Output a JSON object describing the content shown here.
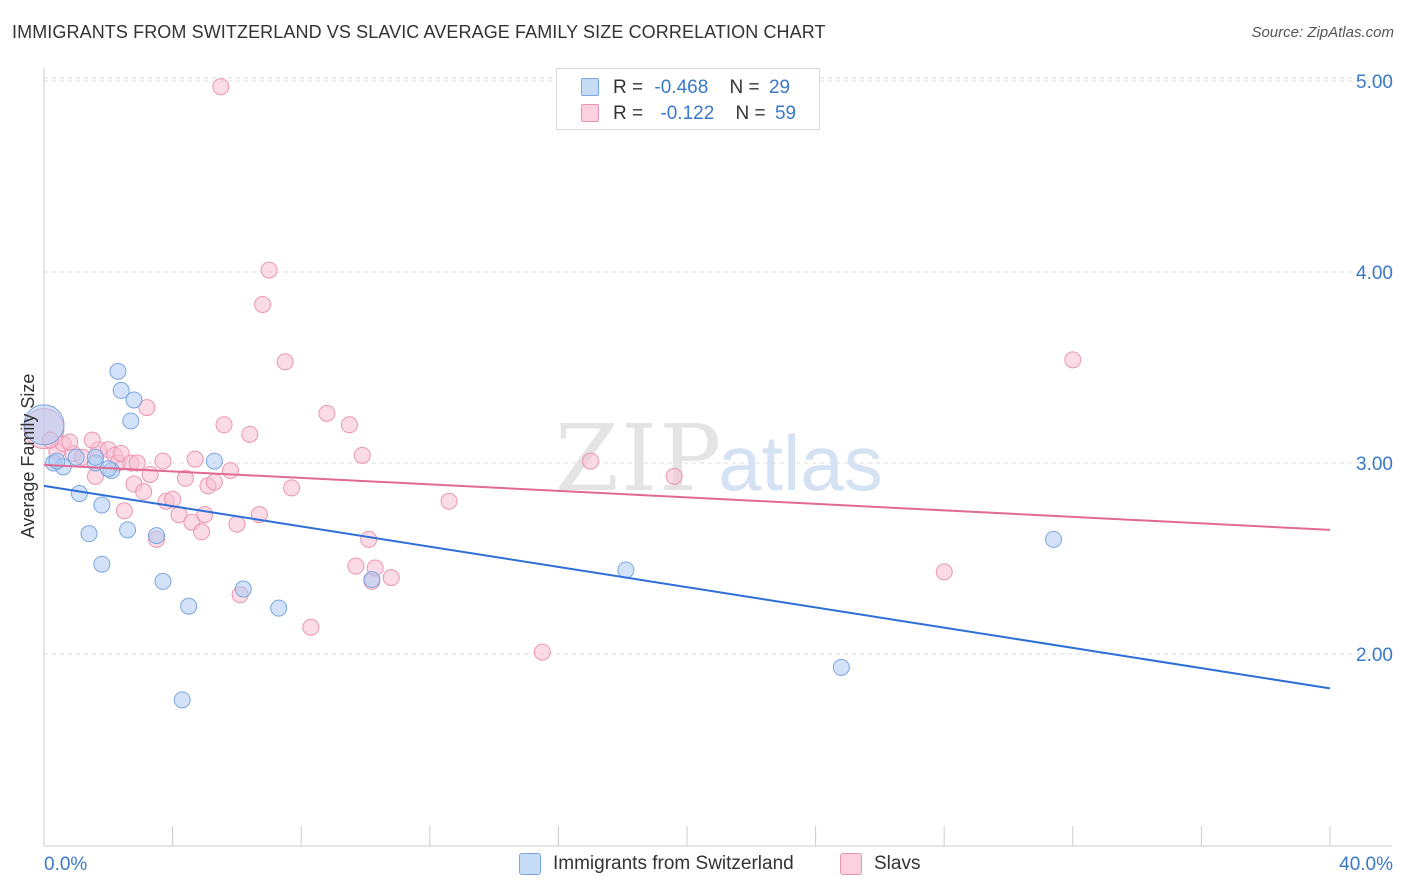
{
  "title": "IMMIGRANTS FROM SWITZERLAND VS SLAVIC AVERAGE FAMILY SIZE CORRELATION CHART",
  "source": "Source: ZipAtlas.com",
  "watermark": {
    "zip": "ZIP",
    "atlas": "atlas"
  },
  "legend": {
    "rows": [
      {
        "r_label": "R =",
        "r_value": "-0.468",
        "n_label": "N =",
        "n_value": "29"
      },
      {
        "r_label": "R =",
        "r_value": "-0.122",
        "n_label": "N =",
        "n_value": "59"
      }
    ]
  },
  "bottom_legend": [
    {
      "label": "Immigrants from Switzerland"
    },
    {
      "label": "Slavs"
    }
  ],
  "colors": {
    "blue_fill": "#aecbf2",
    "blue_stroke": "#7aa7e0",
    "blue_line": "#2d6fd6",
    "pink_fill": "#f7bfd2",
    "pink_stroke": "#eb94b4",
    "pink_line": "#e06a93",
    "tick_label": "#3a78c9",
    "grid": "#dddddd"
  },
  "chart_data": {
    "type": "scatter",
    "title": "IMMIGRANTS FROM SWITZERLAND VS SLAVIC AVERAGE FAMILY SIZE CORRELATION CHART",
    "xlabel": "",
    "ylabel": "Average Family Size",
    "xlim": [
      0,
      40
    ],
    "ylim": [
      1.0,
      5.1
    ],
    "x_tick_labels": [
      "0.0%",
      "40.0%"
    ],
    "y_ticks": [
      2.0,
      3.0,
      4.0,
      5.0
    ],
    "y_tick_labels": [
      "2.00",
      "3.00",
      "4.00",
      "5.00"
    ],
    "grid": true,
    "series": [
      {
        "name": "Immigrants from Switzerland",
        "r": -0.468,
        "n": 29,
        "trend": {
          "x": [
            0,
            40
          ],
          "y": [
            2.88,
            1.82
          ]
        },
        "points": [
          {
            "x": 0.0,
            "y": 3.2,
            "big": true
          },
          {
            "x": 0.3,
            "y": 3.0
          },
          {
            "x": 0.6,
            "y": 2.98
          },
          {
            "x": 1.0,
            "y": 3.03
          },
          {
            "x": 1.1,
            "y": 2.84
          },
          {
            "x": 1.4,
            "y": 2.63
          },
          {
            "x": 1.6,
            "y": 3.0
          },
          {
            "x": 1.8,
            "y": 2.78
          },
          {
            "x": 1.8,
            "y": 2.47
          },
          {
            "x": 2.1,
            "y": 2.96
          },
          {
            "x": 2.3,
            "y": 3.48
          },
          {
            "x": 2.4,
            "y": 3.38
          },
          {
            "x": 2.6,
            "y": 2.65
          },
          {
            "x": 2.7,
            "y": 3.22
          },
          {
            "x": 2.8,
            "y": 3.33
          },
          {
            "x": 3.5,
            "y": 2.62
          },
          {
            "x": 3.7,
            "y": 2.38
          },
          {
            "x": 4.5,
            "y": 2.25
          },
          {
            "x": 4.3,
            "y": 1.76
          },
          {
            "x": 5.3,
            "y": 3.01
          },
          {
            "x": 6.2,
            "y": 2.34
          },
          {
            "x": 7.3,
            "y": 2.24
          },
          {
            "x": 10.2,
            "y": 2.39
          },
          {
            "x": 18.1,
            "y": 2.44
          },
          {
            "x": 24.8,
            "y": 1.93
          },
          {
            "x": 31.4,
            "y": 2.6
          },
          {
            "x": 1.6,
            "y": 3.03
          },
          {
            "x": 2.0,
            "y": 2.97
          },
          {
            "x": 0.4,
            "y": 3.01
          }
        ]
      },
      {
        "name": "Slavs",
        "r": -0.122,
        "n": 59,
        "trend": {
          "x": [
            0,
            40
          ],
          "y": [
            2.99,
            2.65
          ]
        },
        "points": [
          {
            "x": 0.0,
            "y": 3.18,
            "big": true
          },
          {
            "x": 0.4,
            "y": 3.06
          },
          {
            "x": 0.6,
            "y": 3.1
          },
          {
            "x": 0.9,
            "y": 3.05
          },
          {
            "x": 0.8,
            "y": 3.11
          },
          {
            "x": 1.2,
            "y": 3.03
          },
          {
            "x": 1.7,
            "y": 3.07
          },
          {
            "x": 1.6,
            "y": 2.93
          },
          {
            "x": 2.0,
            "y": 3.07
          },
          {
            "x": 2.2,
            "y": 3.04
          },
          {
            "x": 2.3,
            "y": 3.0
          },
          {
            "x": 2.4,
            "y": 3.05
          },
          {
            "x": 2.5,
            "y": 2.75
          },
          {
            "x": 2.7,
            "y": 3.0
          },
          {
            "x": 2.8,
            "y": 2.89
          },
          {
            "x": 3.1,
            "y": 2.85
          },
          {
            "x": 3.2,
            "y": 3.29
          },
          {
            "x": 3.3,
            "y": 2.94
          },
          {
            "x": 3.5,
            "y": 2.6
          },
          {
            "x": 3.7,
            "y": 3.01
          },
          {
            "x": 3.8,
            "y": 2.8
          },
          {
            "x": 4.0,
            "y": 2.81
          },
          {
            "x": 4.2,
            "y": 2.73
          },
          {
            "x": 4.4,
            "y": 2.92
          },
          {
            "x": 4.6,
            "y": 2.69
          },
          {
            "x": 4.7,
            "y": 3.02
          },
          {
            "x": 4.9,
            "y": 2.64
          },
          {
            "x": 5.0,
            "y": 2.73
          },
          {
            "x": 5.1,
            "y": 2.88
          },
          {
            "x": 5.3,
            "y": 2.9
          },
          {
            "x": 5.5,
            "y": 4.97
          },
          {
            "x": 5.6,
            "y": 3.2
          },
          {
            "x": 5.8,
            "y": 2.96
          },
          {
            "x": 6.0,
            "y": 2.68
          },
          {
            "x": 6.1,
            "y": 2.31
          },
          {
            "x": 6.4,
            "y": 3.15
          },
          {
            "x": 6.7,
            "y": 2.73
          },
          {
            "x": 6.8,
            "y": 3.83
          },
          {
            "x": 7.0,
            "y": 4.01
          },
          {
            "x": 7.5,
            "y": 3.53
          },
          {
            "x": 7.7,
            "y": 2.87
          },
          {
            "x": 8.3,
            "y": 2.14
          },
          {
            "x": 8.8,
            "y": 3.26
          },
          {
            "x": 9.5,
            "y": 3.2
          },
          {
            "x": 9.7,
            "y": 2.46
          },
          {
            "x": 9.9,
            "y": 3.04
          },
          {
            "x": 10.1,
            "y": 2.6
          },
          {
            "x": 10.2,
            "y": 2.38
          },
          {
            "x": 10.3,
            "y": 2.45
          },
          {
            "x": 10.8,
            "y": 2.4
          },
          {
            "x": 12.6,
            "y": 2.8
          },
          {
            "x": 15.5,
            "y": 2.01
          },
          {
            "x": 17.0,
            "y": 3.01
          },
          {
            "x": 19.6,
            "y": 2.93
          },
          {
            "x": 28.0,
            "y": 2.43
          },
          {
            "x": 32.0,
            "y": 3.54
          },
          {
            "x": 1.5,
            "y": 3.12
          },
          {
            "x": 2.9,
            "y": 3.0
          },
          {
            "x": 0.2,
            "y": 3.12
          }
        ]
      }
    ]
  }
}
